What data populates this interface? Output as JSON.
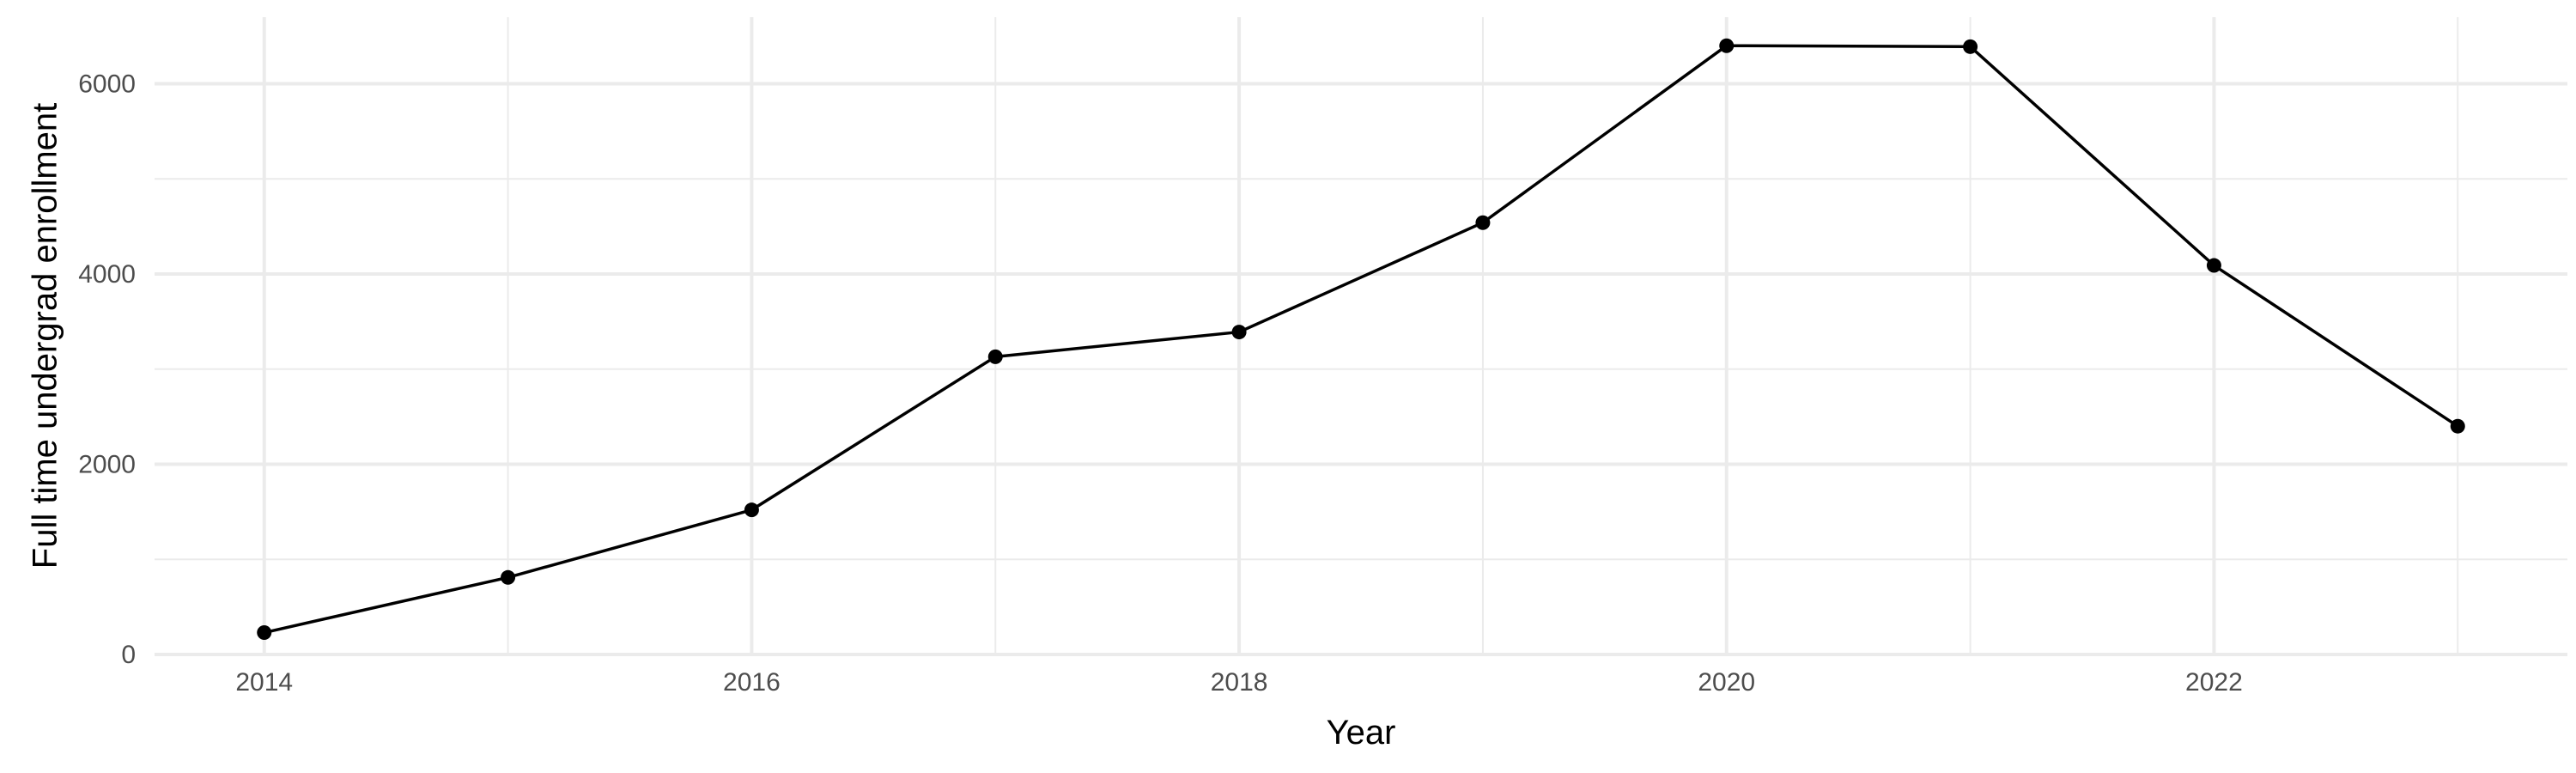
{
  "chart_data": {
    "type": "line",
    "title": "",
    "xlabel": "Year",
    "ylabel": "Full time undergrad enrollment",
    "x": [
      2014,
      2015,
      2016,
      2017,
      2018,
      2019,
      2020,
      2021,
      2022,
      2023
    ],
    "series": [
      {
        "values": [
          230,
          810,
          1520,
          3130,
          3390,
          4540,
          6400,
          6390,
          4090,
          2400
        ]
      }
    ],
    "xlim": [
      2013.55,
      2023.45
    ],
    "ylim": [
      0,
      6700
    ],
    "x_ticks": [
      2014,
      2016,
      2018,
      2020,
      2022
    ],
    "x_tick_labels": [
      "2014",
      "2016",
      "2018",
      "2020",
      "2022"
    ],
    "x_minor_ticks": [
      2015,
      2017,
      2019,
      2021,
      2023
    ],
    "y_ticks": [
      0,
      2000,
      4000,
      6000
    ],
    "y_tick_labels": [
      "0",
      "2000",
      "4000",
      "6000"
    ],
    "y_minor_ticks": [
      1000,
      3000,
      5000
    ],
    "grid": true,
    "legend": "none",
    "colors": {
      "line": "#000000",
      "points": "#000000",
      "grid": "#ebebeb",
      "background": "#ffffff"
    }
  }
}
